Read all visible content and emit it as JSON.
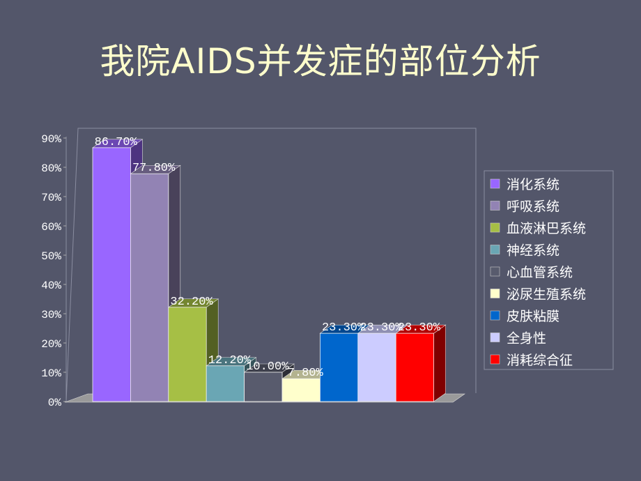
{
  "title": "我院AIDS并发症的部位分析",
  "chart_data": {
    "type": "bar",
    "style": "3d-column",
    "title": "",
    "xlabel": "",
    "ylabel": "",
    "ylim": [
      0,
      90
    ],
    "yticks": [
      "0%",
      "10%",
      "20%",
      "30%",
      "40%",
      "50%",
      "60%",
      "70%",
      "80%",
      "90%"
    ],
    "legend_position": "right",
    "series": [
      {
        "name": "消化系统",
        "value": 86.7,
        "label": "86.70%",
        "color": "#9966ff"
      },
      {
        "name": "呼吸系统",
        "value": 77.8,
        "label": "77.80%",
        "color": "#9283b4"
      },
      {
        "name": "血液淋巴系统",
        "value": 32.2,
        "label": "32.20%",
        "color": "#a6bf45"
      },
      {
        "name": "神经系统",
        "value": 12.2,
        "label": "12.20%",
        "color": "#6aa6b4"
      },
      {
        "name": "心血管系统",
        "value": 10.0,
        "label": "10.00%",
        "color": "#585b6d"
      },
      {
        "name": "泌尿生殖系统",
        "value": 7.8,
        "label": "7.80%",
        "color": "#ffffcc"
      },
      {
        "name": "皮肤粘膜",
        "value": 23.3,
        "label": "23.30%",
        "color": "#0066cc"
      },
      {
        "name": "全身性",
        "value": 23.3,
        "label": "23.30%",
        "color": "#ccccff"
      },
      {
        "name": "消耗综合征",
        "value": 23.3,
        "label": "23.30%",
        "color": "#ff0000"
      }
    ]
  }
}
